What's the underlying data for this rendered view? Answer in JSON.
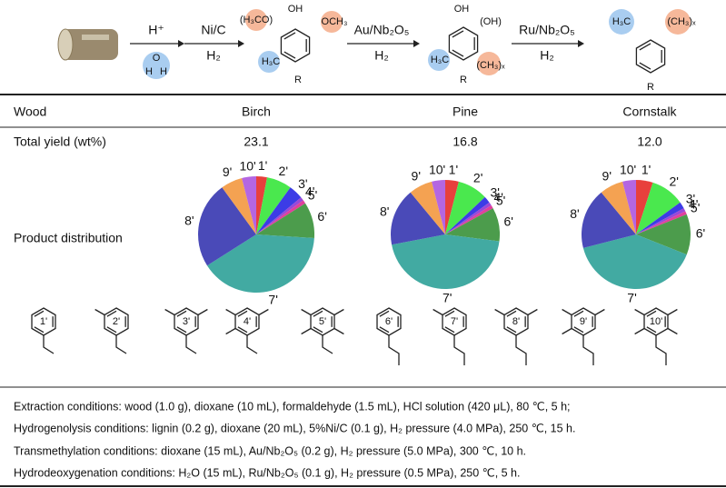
{
  "scheme": {
    "reagent1": "H⁺",
    "formaldehyde_o": "O",
    "formaldehyde_h1": "H",
    "formaldehyde_h2": "H",
    "reagent2": "Ni/C",
    "cond2": "H₂",
    "reagent3": "Au/Nb₂O₅",
    "cond3": "H₂",
    "reagent4": "Ru/Nb₂O₅",
    "cond4": "H₂",
    "m1": {
      "oh": "OH",
      "ome_left": "(H₃CO)",
      "ome_right": "OCH₃",
      "me": "H₃C",
      "r": "R"
    },
    "m2": {
      "oh": "OH",
      "oh2": "(OH)",
      "me": "H₃C",
      "r": "R",
      "mex": "(CH₃)ₓ"
    },
    "m3": {
      "me": "H₃C",
      "mex": "(CH₃)ₓ",
      "r": "R"
    }
  },
  "table": {
    "header": [
      "Wood",
      "Birch",
      "Pine",
      "Cornstalk"
    ],
    "yield_row": [
      "Total yield (wt%)",
      "23.1",
      "16.8",
      "12.0"
    ],
    "distribution_label": "Product distribution"
  },
  "chart_data": [
    {
      "type": "pie",
      "categories": [
        "1'",
        "2'",
        "3'",
        "4'",
        "5'",
        "6'",
        "7'",
        "8'",
        "9'",
        "10'"
      ],
      "values": [
        3,
        7,
        4,
        1,
        1,
        10,
        40,
        24,
        6,
        4
      ],
      "colors": [
        "#e8403c",
        "#4ae84e",
        "#3c3ce6",
        "#9a48d8",
        "#e0409c",
        "#4c9c4c",
        "#42aaa2",
        "#4a4ab8",
        "#f4a252",
        "#b466e2"
      ]
    },
    {
      "type": "pie",
      "categories": [
        "1'",
        "2'",
        "3'",
        "4'",
        "5'",
        "6'",
        "7'",
        "8'",
        "9'",
        "10'"
      ],
      "values": [
        4,
        9,
        2,
        1,
        1,
        10,
        45,
        17,
        7,
        4
      ],
      "colors": [
        "#e8403c",
        "#4ae84e",
        "#3c3ce6",
        "#9a48d8",
        "#e0409c",
        "#4c9c4c",
        "#42aaa2",
        "#4a4ab8",
        "#f4a252",
        "#b466e2"
      ]
    },
    {
      "type": "pie",
      "categories": [
        "1'",
        "2'",
        "3'",
        "4'",
        "5'",
        "6'",
        "7'",
        "8'",
        "9'",
        "10'"
      ],
      "values": [
        5,
        10,
        2,
        1,
        1,
        12,
        40,
        18,
        7,
        4
      ],
      "colors": [
        "#e8403c",
        "#4ae84e",
        "#3c3ce6",
        "#9a48d8",
        "#e0409c",
        "#4c9c4c",
        "#42aaa2",
        "#4a4ab8",
        "#f4a252",
        "#b466e2"
      ]
    }
  ],
  "structures": [
    "1'",
    "2'",
    "3'",
    "4'",
    "5'",
    "6'",
    "7'",
    "8'",
    "9'",
    "10'"
  ],
  "conditions": [
    "Extraction conditions: wood (1.0 g), dioxane (10 mL), formaldehyde (1.5 mL), HCl solution (420 μL), 80 ℃, 5 h;",
    "Hydrogenolysis conditions:  lignin (0.2 g), dioxane (20 mL), 5%Ni/C (0.1 g), H₂ pressure (4.0 MPa), 250 ℃, 15 h.",
    "Transmethylation conditions: dioxane (15 mL), Au/Nb₂O₅ (0.2 g), H₂ pressure (5.0 MPa), 300 ℃, 10 h.",
    "Hydrodeoxygenation conditions: H₂O (15 mL), Ru/Nb₂O₅ (0.1 g), H₂ pressure (0.5 MPa), 250 ℃, 5 h."
  ]
}
